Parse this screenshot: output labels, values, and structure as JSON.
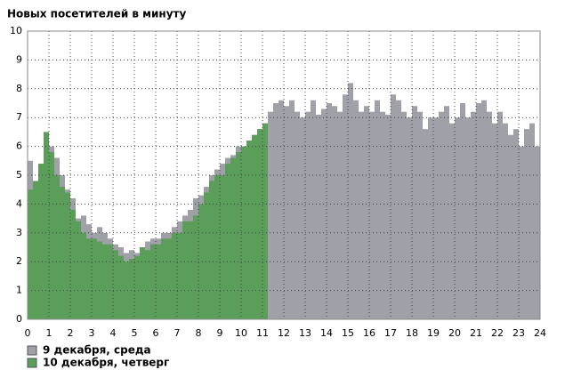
{
  "chart_data": {
    "type": "bar",
    "title": "Новых посетителей в минуту",
    "x": [
      0,
      0.25,
      0.5,
      0.75,
      1,
      1.25,
      1.5,
      1.75,
      2,
      2.25,
      2.5,
      2.75,
      3,
      3.25,
      3.5,
      3.75,
      4,
      4.25,
      4.5,
      4.75,
      5,
      5.25,
      5.5,
      5.75,
      6,
      6.25,
      6.5,
      6.75,
      7,
      7.25,
      7.5,
      7.75,
      8,
      8.25,
      8.5,
      8.75,
      9,
      9.25,
      9.5,
      9.75,
      10,
      10.25,
      10.5,
      10.75,
      11,
      11.25,
      11.5,
      11.75,
      12,
      12.25,
      12.5,
      12.75,
      13,
      13.25,
      13.5,
      13.75,
      14,
      14.25,
      14.5,
      14.75,
      15,
      15.25,
      15.5,
      15.75,
      16,
      16.25,
      16.5,
      16.75,
      17,
      17.25,
      17.5,
      17.75,
      18,
      18.25,
      18.5,
      18.75,
      19,
      19.25,
      19.5,
      19.75,
      20,
      20.25,
      20.5,
      20.75,
      21,
      21.25,
      21.5,
      21.75,
      22,
      22.25,
      22.5,
      22.75,
      23,
      23.25,
      23.5,
      23.75
    ],
    "series": [
      {
        "name": "9 декабря, среда",
        "color": "#a0a0a8",
        "values": [
          5.5,
          4.5,
          4.6,
          5.2,
          6,
          5.6,
          5,
          4.5,
          4.2,
          3.5,
          3.6,
          3.3,
          3,
          3.2,
          3,
          2.8,
          2.6,
          2.5,
          2.3,
          2.4,
          2.3,
          2.5,
          2.7,
          2.8,
          2.8,
          3,
          3,
          3.2,
          3.4,
          3.6,
          3.8,
          4.2,
          4.3,
          4.6,
          5,
          5.2,
          5.4,
          5.6,
          5.7,
          6,
          6,
          6.2,
          6.3,
          6.6,
          6.8,
          7.2,
          7.5,
          7.6,
          7.4,
          7.6,
          7.2,
          7,
          7.2,
          7.6,
          7.1,
          7.3,
          7.5,
          7.4,
          7.2,
          7.8,
          8.2,
          7.6,
          7.2,
          7.4,
          7.2,
          7.6,
          7.2,
          7.1,
          7.8,
          7.6,
          7.2,
          7,
          7.4,
          7.2,
          6.6,
          7,
          7,
          7.2,
          7.4,
          6.8,
          7,
          7.5,
          7,
          7.2,
          7.5,
          7.6,
          7.2,
          6.8,
          7.2,
          6.8,
          6.4,
          6.6,
          6,
          6.6,
          6.8,
          6
        ]
      },
      {
        "name": "10 декабря, четверг",
        "color": "#5a9e5a",
        "values": [
          4.5,
          4.8,
          5.4,
          6.5,
          5.8,
          5,
          4.6,
          4.4,
          3.8,
          3.4,
          3,
          2.8,
          2.8,
          2.7,
          2.6,
          2.6,
          2.4,
          2.2,
          2,
          2.1,
          2.2,
          2.5,
          2.4,
          2.6,
          2.6,
          2.8,
          2.8,
          3,
          3,
          3.4,
          3.4,
          3.6,
          4,
          4.4,
          4.8,
          5,
          5,
          5.4,
          5.6,
          5.8,
          6,
          6.2,
          6.4,
          6.6,
          6.8,
          null,
          null,
          null,
          null,
          null,
          null,
          null,
          null,
          null,
          null,
          null,
          null,
          null,
          null,
          null,
          null,
          null,
          null,
          null,
          null,
          null,
          null,
          null,
          null,
          null,
          null,
          null,
          null,
          null,
          null,
          null,
          null,
          null,
          null,
          null,
          null,
          null,
          null,
          null,
          null,
          null,
          null,
          null,
          null,
          null,
          null,
          null,
          null,
          null,
          null,
          null
        ]
      }
    ],
    "xlim": [
      0,
      24
    ],
    "xticks": [
      0,
      1,
      2,
      3,
      4,
      5,
      6,
      7,
      8,
      9,
      10,
      11,
      12,
      13,
      14,
      15,
      16,
      17,
      18,
      19,
      20,
      21,
      22,
      23,
      24
    ],
    "ylim": [
      0,
      10
    ],
    "yticks": [
      0,
      1,
      2,
      3,
      4,
      5,
      6,
      7,
      8,
      9,
      10
    ],
    "grid": true,
    "bar_width": 0.25
  }
}
